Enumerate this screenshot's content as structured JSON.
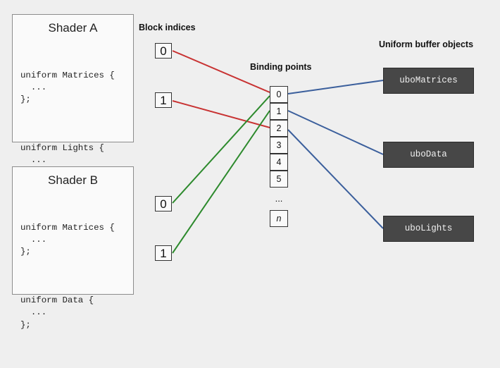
{
  "labels": {
    "block_indices": "Block indices",
    "binding_points": "Binding points",
    "ubos": "Uniform buffer objects"
  },
  "shaders": [
    {
      "title": "Shader A",
      "blocks": [
        [
          "uniform Matrices {",
          "  ...",
          "};"
        ],
        [
          "uniform Lights {",
          "  ...",
          "};"
        ]
      ]
    },
    {
      "title": "Shader B",
      "blocks": [
        [
          "uniform Matrices {",
          "  ...",
          "};"
        ],
        [
          "uniform Data {",
          "  ...",
          "};"
        ]
      ]
    }
  ],
  "block_indices": [
    "0",
    "1",
    "0",
    "1"
  ],
  "binding_points": [
    "0",
    "1",
    "2",
    "3",
    "4",
    "5"
  ],
  "binding_ellipsis": "...",
  "binding_last": "n",
  "ubos": [
    "uboMatrices",
    "uboData",
    "uboLights"
  ],
  "colors": {
    "shader_a_link": "#c83232",
    "shader_b_link": "#2d8a2d",
    "ubo_link": "#3b5f9c"
  }
}
